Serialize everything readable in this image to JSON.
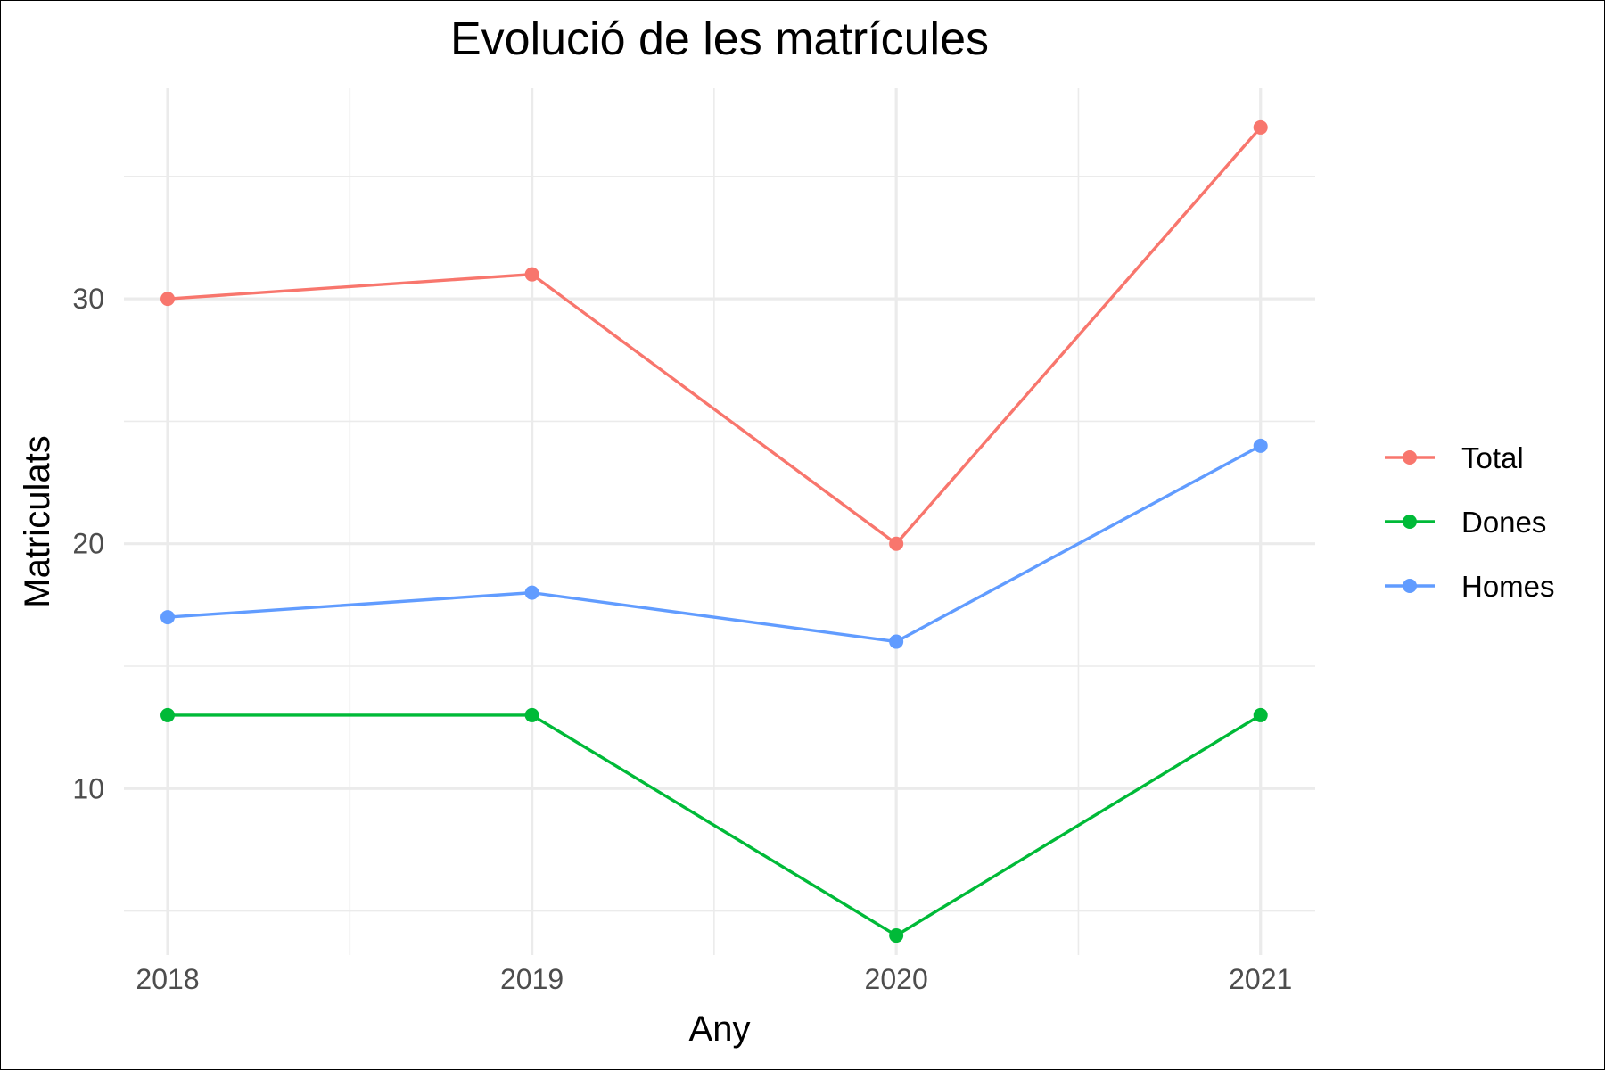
{
  "chart_data": {
    "type": "line",
    "title": "Evolució de les matrícules",
    "xlabel": "Any",
    "ylabel": "Matriculats",
    "x": [
      2018,
      2019,
      2020,
      2021
    ],
    "x_tick_labels": [
      "2018",
      "2019",
      "2020",
      "2021"
    ],
    "y_ticks": [
      10,
      20,
      30
    ],
    "y_tick_labels": [
      "10",
      "20",
      "30"
    ],
    "xlim": [
      2017.88,
      2021.15
    ],
    "ylim": [
      3.2,
      38.6
    ],
    "grid": true,
    "legend_position": "right",
    "series": [
      {
        "name": "Total",
        "color": "#F8766D",
        "values": [
          30,
          31,
          20,
          37
        ]
      },
      {
        "name": "Dones",
        "color": "#00BA38",
        "values": [
          13,
          13,
          4,
          13
        ]
      },
      {
        "name": "Homes",
        "color": "#619CFF",
        "values": [
          17,
          18,
          16,
          24
        ]
      }
    ]
  }
}
